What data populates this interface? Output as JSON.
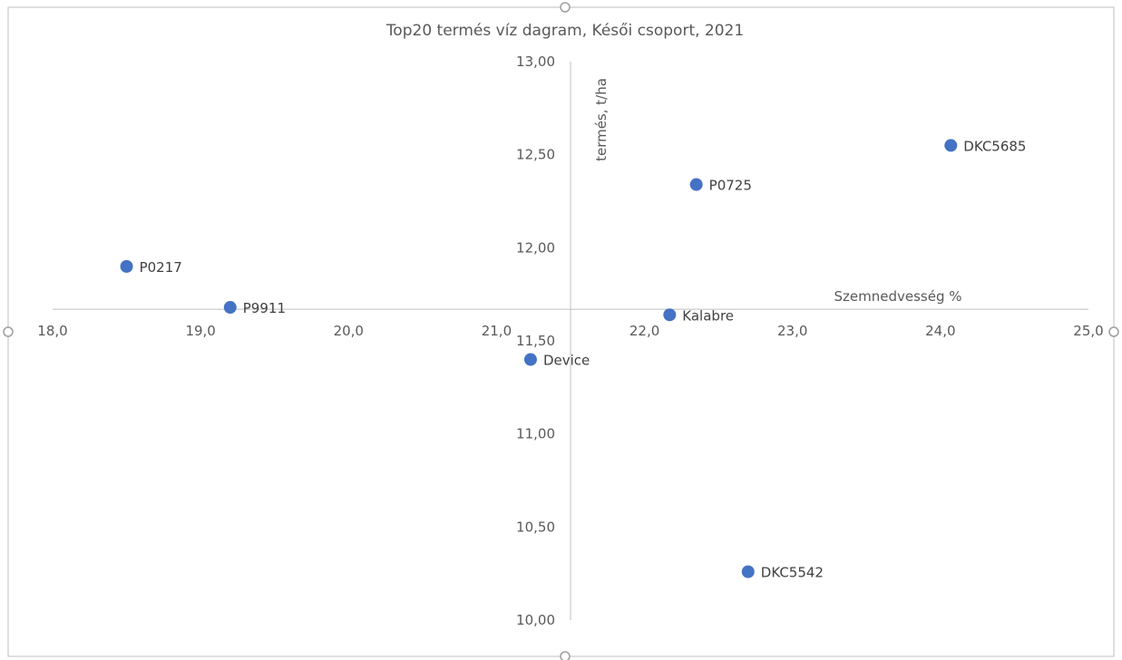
{
  "chart_data": {
    "type": "scatter",
    "title": "Top20 termés víz dagram, Késői csoport, 2021",
    "xlabel": "Szemnedvesség %",
    "ylabel": "termés, t/ha",
    "xlim": [
      18.0,
      25.0
    ],
    "ylim": [
      10.0,
      13.0
    ],
    "x_ticks": [
      "18,0",
      "19,0",
      "20,0",
      "21,0",
      "22,0",
      "23,0",
      "24,0",
      "25,0"
    ],
    "y_ticks": [
      "10,00",
      "10,50",
      "11,00",
      "11,50",
      "12,00",
      "12,50",
      "13,00"
    ],
    "axes_cross": {
      "x": 21.5,
      "y": 11.67
    },
    "grid": false,
    "legend": "none",
    "marker_color": "#4472C4",
    "series": [
      {
        "points": [
          {
            "label": "P0217",
            "x": 18.5,
            "y": 11.9
          },
          {
            "label": "P9911",
            "x": 19.2,
            "y": 11.68
          },
          {
            "label": "P0725",
            "x": 22.35,
            "y": 12.34
          },
          {
            "label": "DKC5685",
            "x": 24.07,
            "y": 12.55
          },
          {
            "label": "Kalabre",
            "x": 22.17,
            "y": 11.64
          },
          {
            "label": "Device",
            "x": 21.23,
            "y": 11.4
          },
          {
            "label": "DKC5542",
            "x": 22.7,
            "y": 10.26
          }
        ]
      }
    ]
  }
}
